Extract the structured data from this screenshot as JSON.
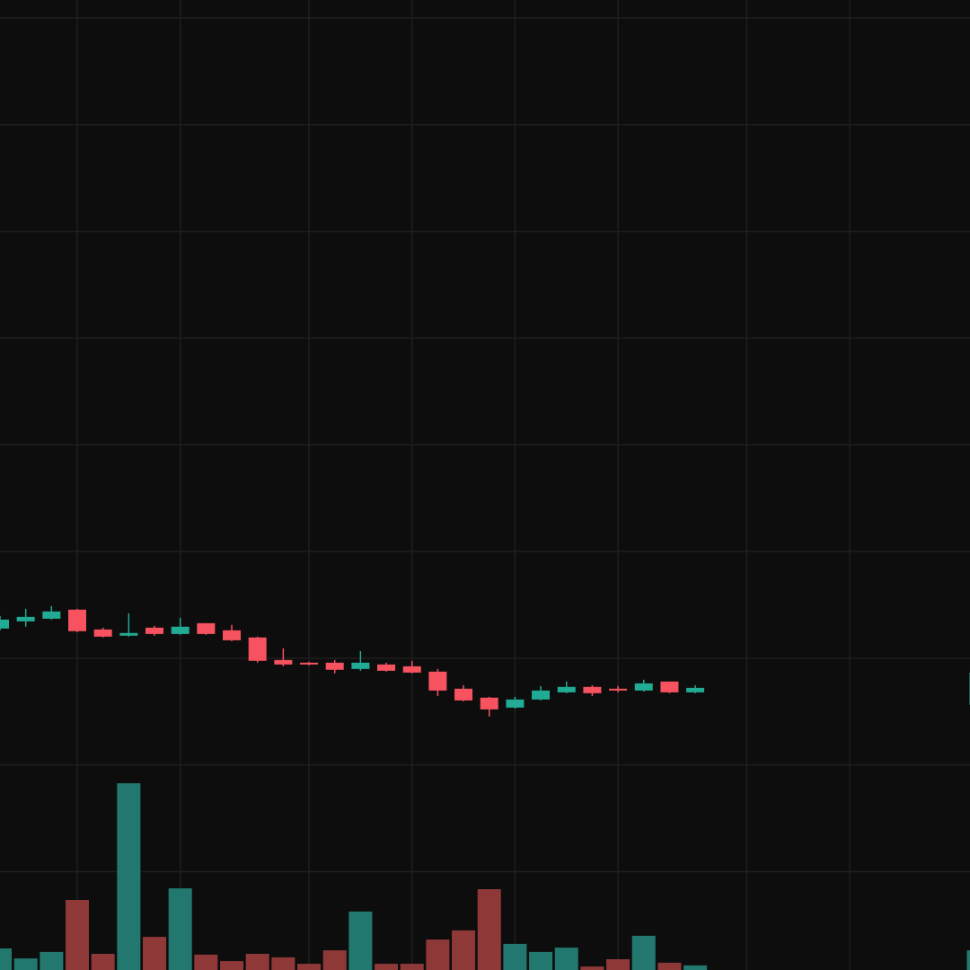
{
  "chart_data": {
    "type": "candlestick",
    "x": [
      0,
      1,
      2,
      3,
      4,
      5,
      6,
      7,
      8,
      9,
      10,
      11,
      12,
      13,
      14,
      15,
      16,
      17,
      18,
      19,
      20,
      21,
      22,
      23,
      24,
      25,
      26,
      27,
      38
    ],
    "open": [
      102.78,
      103.45,
      103.7,
      104.55,
      102.69,
      102.11,
      102.86,
      102.27,
      103.28,
      102.61,
      101.94,
      99.83,
      99.58,
      99.58,
      98.99,
      99.41,
      99.24,
      98.74,
      97.14,
      96.3,
      95.37,
      96.13,
      96.8,
      97.31,
      97.14,
      96.97,
      97.81,
      96.8,
      95.62
    ],
    "high": [
      103.96,
      104.63,
      104.88,
      104.63,
      102.86,
      104.21,
      103.03,
      103.79,
      103.28,
      103.12,
      102.02,
      100.93,
      99.66,
      99.83,
      100.67,
      99.58,
      99.75,
      98.99,
      97.47,
      96.38,
      96.38,
      97.39,
      97.81,
      97.47,
      97.39,
      97.98,
      97.81,
      97.47,
      98.65
    ],
    "low": [
      102.61,
      102.95,
      103.62,
      102.44,
      101.94,
      102.02,
      102.11,
      102.19,
      102.19,
      101.6,
      99.58,
      99.24,
      99.33,
      98.57,
      98.82,
      98.74,
      98.57,
      96.46,
      95.96,
      94.53,
      95.28,
      96.04,
      96.72,
      96.46,
      96.8,
      96.88,
      96.72,
      96.72,
      95.62
    ],
    "close": [
      103.62,
      103.87,
      104.38,
      102.53,
      102.02,
      102.36,
      102.27,
      102.95,
      102.27,
      101.68,
      99.75,
      99.41,
      99.41,
      98.91,
      99.58,
      98.82,
      98.65,
      96.97,
      96.04,
      95.2,
      96.13,
      96.97,
      97.31,
      96.72,
      96.97,
      97.64,
      96.8,
      97.22,
      98.65
    ],
    "volume": [
      8,
      4.3,
      6.7,
      26,
      6,
      69.3,
      12.3,
      30.3,
      5.7,
      3.3,
      6,
      4.7,
      2.3,
      7.3,
      21.7,
      2.3,
      2.3,
      11.3,
      14.7,
      30,
      9.7,
      6.7,
      8.3,
      1.3,
      4,
      12.7,
      2.7,
      1.7,
      7.3
    ],
    "xlim": [
      0,
      37.67
    ],
    "xticks": [
      3,
      7,
      12,
      16,
      20,
      24,
      29,
      33
    ],
    "ylim": [
      70.78,
      161.68
    ],
    "yticks": [
      80,
      90,
      100,
      110,
      120,
      130,
      140,
      150,
      160
    ],
    "volume_ylim": [
      0,
      100
    ],
    "grid": true,
    "up_color": "#22ab94",
    "down_color": "#f7525f",
    "volume_up_color": "#22786e",
    "volume_down_color": "#8e3838",
    "background": "#0d0d0d",
    "grid_color": "#1f1f1f"
  }
}
